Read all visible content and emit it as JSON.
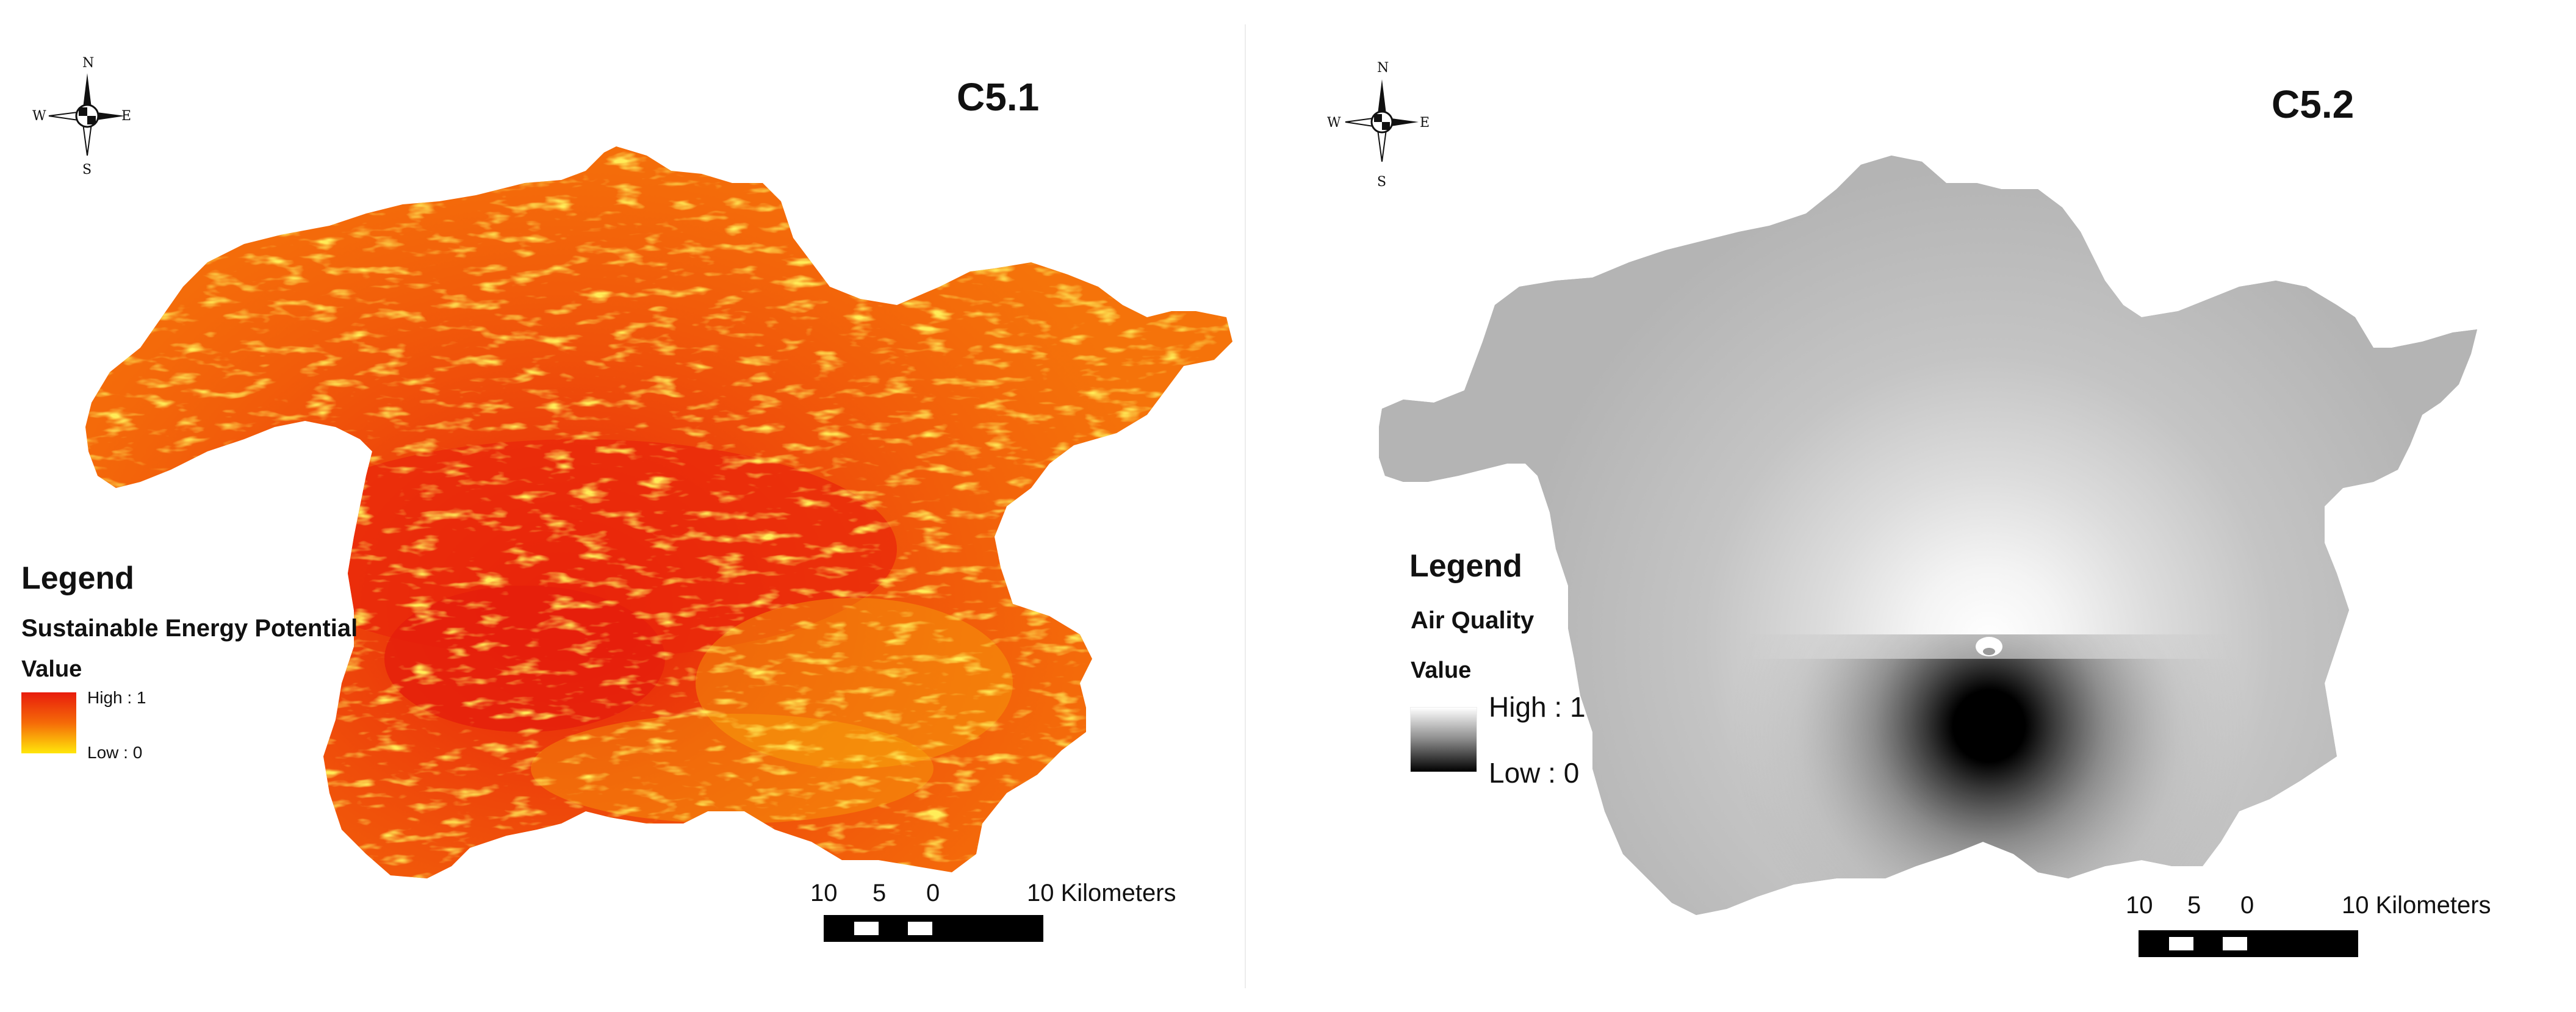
{
  "maps": [
    {
      "title": "C5.1",
      "legend": {
        "heading": "Legend",
        "layer_name": "Sustainable Energy Potential",
        "field_name": "Value",
        "high_label": "High : 1",
        "low_label": "Low : 0",
        "ramp_colors": [
          "#e81c0c",
          "#f56a08",
          "#ffe70a"
        ]
      },
      "scale_bar": {
        "labels": [
          "10",
          "5",
          "0",
          "10 Kilometers"
        ]
      },
      "compass": {
        "n": "N",
        "s": "S",
        "e": "E",
        "w": "W"
      }
    },
    {
      "title": "C5.2",
      "legend": {
        "heading": "Legend",
        "layer_name": "Air Quality",
        "field_name": "Value",
        "high_label": "High : 1",
        "low_label": "Low : 0",
        "ramp_colors": [
          "#ffffff",
          "#8a8a8a",
          "#000000"
        ]
      },
      "scale_bar": {
        "labels": [
          "10",
          "5",
          "0",
          "10 Kilometers"
        ]
      },
      "compass": {
        "n": "N",
        "s": "S",
        "e": "E",
        "w": "W"
      }
    }
  ]
}
